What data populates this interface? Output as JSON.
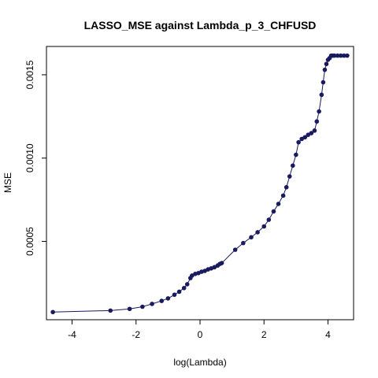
{
  "chart_data": {
    "type": "line",
    "title": "LASSO_MSE against Lambda_p_3_CHFUSD",
    "xlabel": "log(Lambda)",
    "ylabel": "MSE",
    "xlim": [
      -4.8,
      4.8
    ],
    "ylim": [
      3e-05,
      0.00167
    ],
    "x_ticks": [
      -4,
      -2,
      0,
      2,
      4
    ],
    "x_tick_labels": [
      "-4",
      "-2",
      "0",
      "2",
      "4"
    ],
    "y_ticks": [
      0.0005,
      0.001,
      0.0015
    ],
    "y_tick_labels": [
      "0.0005",
      "0.0010",
      "0.0015"
    ],
    "grid": false,
    "legend": "none",
    "colors": {
      "series": "#1a1a5e",
      "axes": "#000000"
    },
    "series": [
      {
        "x": [
          -4.6,
          -2.8,
          -2.2,
          -1.8,
          -1.5,
          -1.2,
          -1.0,
          -0.8,
          -0.65,
          -0.5,
          -0.4,
          -0.3,
          -0.25,
          -0.15,
          -0.05,
          0.05,
          0.15,
          0.25,
          0.35,
          0.45,
          0.55,
          0.62,
          0.68,
          1.1,
          1.35,
          1.6,
          1.8,
          2.0,
          2.15,
          2.3,
          2.45,
          2.6,
          2.7,
          2.8,
          2.9,
          3.0,
          3.08,
          3.18,
          3.28,
          3.38,
          3.48,
          3.58,
          3.65,
          3.72,
          3.8,
          3.85,
          3.9,
          3.95,
          4.0,
          4.05,
          4.1,
          4.15,
          4.2,
          4.3,
          4.4,
          4.5,
          4.6
        ],
        "y": [
          7.6e-05,
          8.5e-05,
          9.5e-05,
          0.000108,
          0.000125,
          0.000143,
          0.000158,
          0.00018,
          0.000198,
          0.00022,
          0.000243,
          0.00028,
          0.000295,
          0.000305,
          0.00031,
          0.000318,
          0.000323,
          0.000332,
          0.000338,
          0.000345,
          0.000355,
          0.000365,
          0.00037,
          0.00045,
          0.00049,
          0.000525,
          0.000555,
          0.00059,
          0.00063,
          0.00068,
          0.000725,
          0.000775,
          0.000825,
          0.00089,
          0.000955,
          0.00102,
          0.001095,
          0.001115,
          0.001125,
          0.00114,
          0.00115,
          0.001165,
          0.00122,
          0.00128,
          0.00138,
          0.001455,
          0.00153,
          0.001565,
          0.00159,
          0.0016,
          0.001615,
          0.001615,
          0.001615,
          0.001615,
          0.001615,
          0.001615,
          0.001615
        ]
      }
    ]
  }
}
